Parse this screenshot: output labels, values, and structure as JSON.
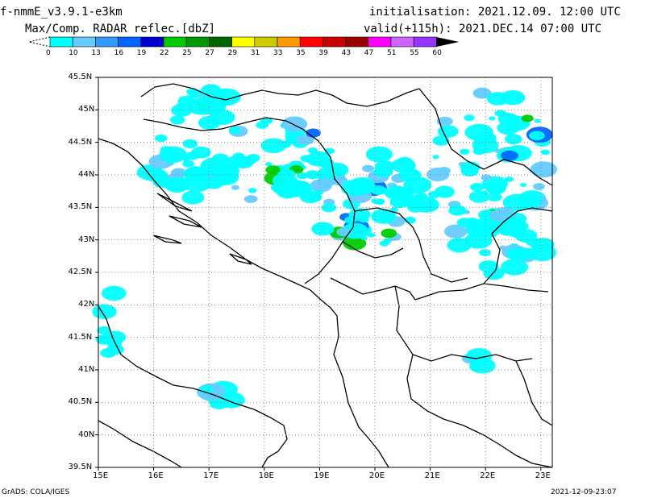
{
  "header": {
    "model": "f-nmmE_v3.9.1-e3km",
    "field": "Max/Comp. RADAR reflec.[dbZ]",
    "init": "initialisation: 2021.12.09. 12:00 UTC",
    "valid": "valid(+115h): 2021.DEC.14 07:00 UTC"
  },
  "colorbar": {
    "labels": [
      "0",
      "10",
      "13",
      "16",
      "19",
      "22",
      "25",
      "27",
      "29",
      "31",
      "33",
      "35",
      "39",
      "43",
      "47",
      "51",
      "55",
      "60"
    ],
    "colors": [
      "#00ffff",
      "#66ccff",
      "#3399ff",
      "#0066ff",
      "#0000cc",
      "#00cc00",
      "#009900",
      "#006600",
      "#ffff00",
      "#cccc00",
      "#ff9900",
      "#ff0000",
      "#cc0000",
      "#990000",
      "#ff00ff",
      "#cc66ff",
      "#9933ff"
    ]
  },
  "axes": {
    "lon_labels": [
      "15E",
      "16E",
      "17E",
      "18E",
      "19E",
      "20E",
      "21E",
      "22E",
      "23E"
    ],
    "lat_labels": [
      "45.5N",
      "45N",
      "44.5N",
      "44N",
      "43.5N",
      "43N",
      "42.5N",
      "42N",
      "41.5N",
      "41N",
      "40.5N",
      "40N",
      "39.5N"
    ]
  },
  "footer": {
    "left": "GrADS: COLA/IGES",
    "right": "2021-12-09-23:07"
  }
}
